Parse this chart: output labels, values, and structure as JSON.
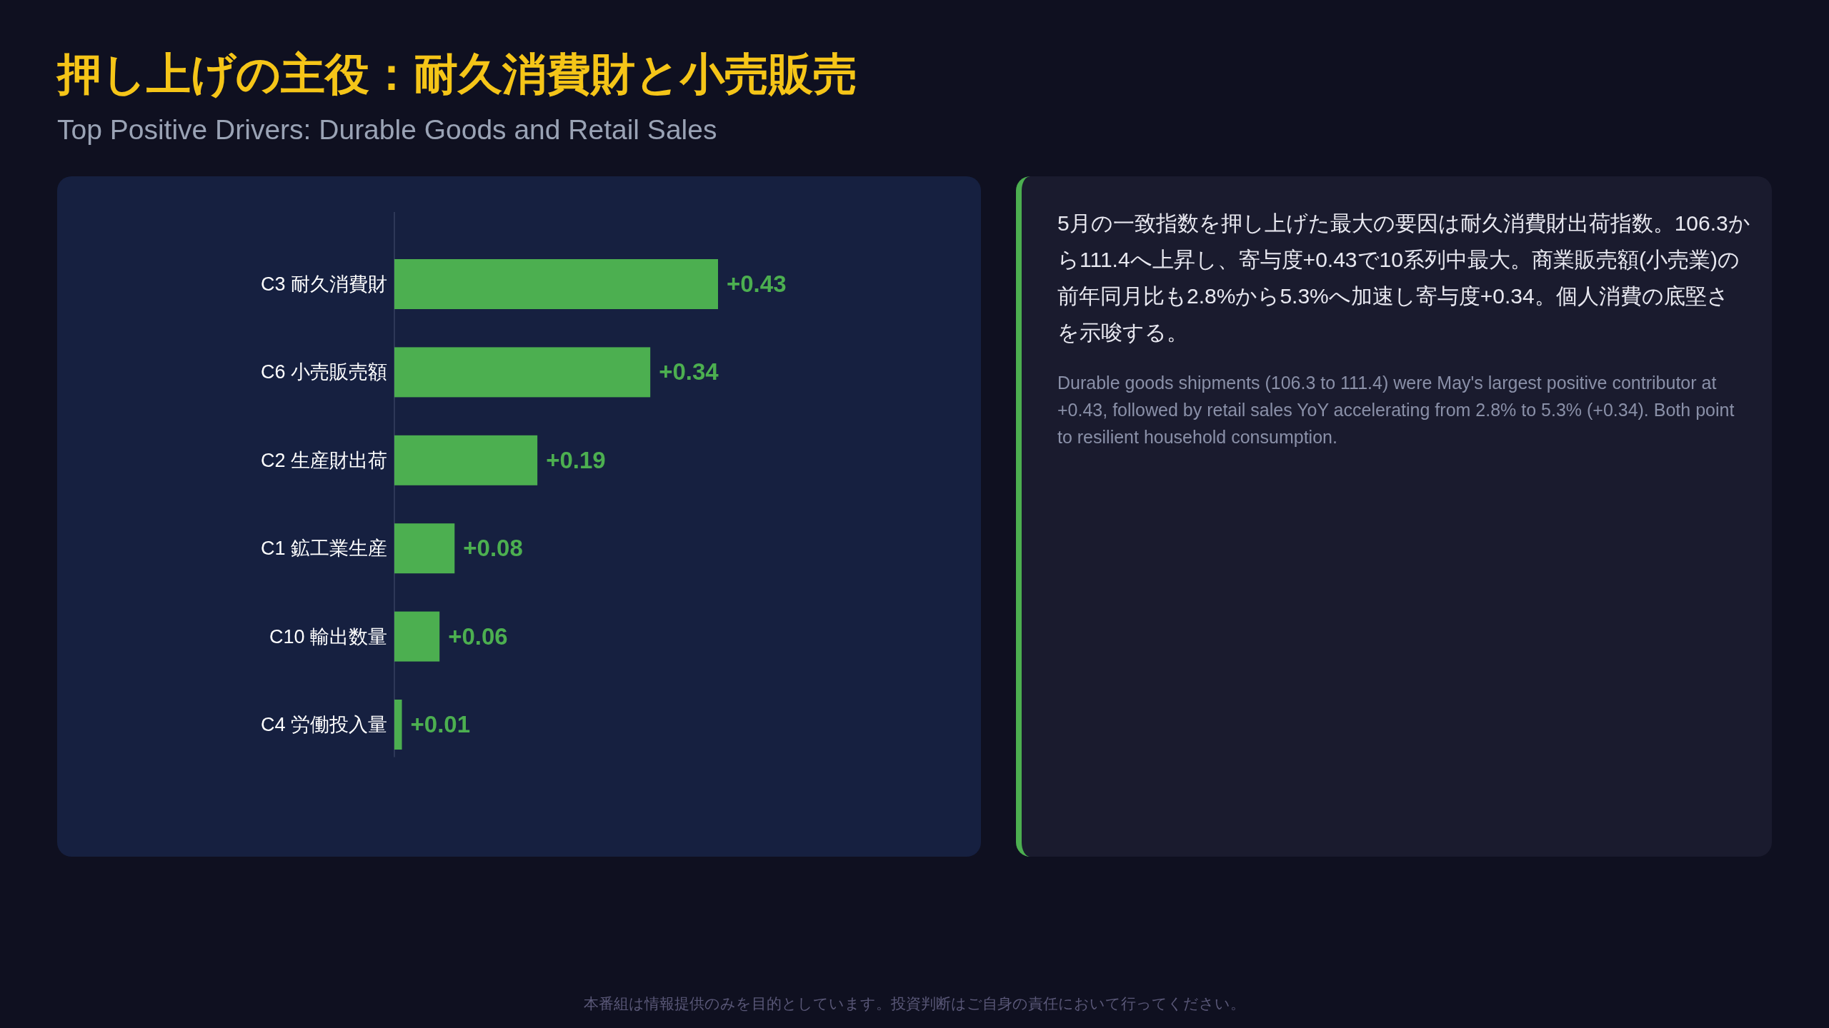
{
  "chart_data": [
    {
      "type": "bar",
      "orientation": "horizontal",
      "title": "押し上げの主役：耐久消費財と小売販売",
      "subtitle": "Top Positive Drivers: Durable Goods and Retail Sales",
      "categories": [
        "C3 耐久消費財",
        "C6 小売販売額",
        "C2 生産財出荷",
        "C1 鉱工業生産",
        "C10 輸出数量",
        "C4 労働投入量"
      ],
      "values": [
        0.43,
        0.34,
        0.19,
        0.08,
        0.06,
        0.01
      ],
      "color": "#4caf50",
      "value_labels": [
        "+0.43",
        "+0.34",
        "+0.19",
        "+0.08",
        "+0.06",
        "+0.01"
      ],
      "annotations": [
        "本番組は情報提供のみを目的としています。投資判断はご自身の責任において行ってください。"
      ]
    },
    {
      "type": "other",
      "annotations": [
        "5月の一致指数を押し上げた最大の要因は耐久消費財出荷指数。106.3から111.4へ上昇し、寄与度+0.43で10系列中最大。商業販売額(小売業)の前年同月比も2.8%から5.3%へ加速し寄与度+0.34。個人消費の底堅さを示唆する。",
        "Durable goods shipments (106.3 to 111.4) were May's largest positive contributor at +0.43, followed by retail sales YoY accelerating from 2.8% to 5.3% (+0.34). Both point to resilient household consumption."
      ]
    }
  ]
}
